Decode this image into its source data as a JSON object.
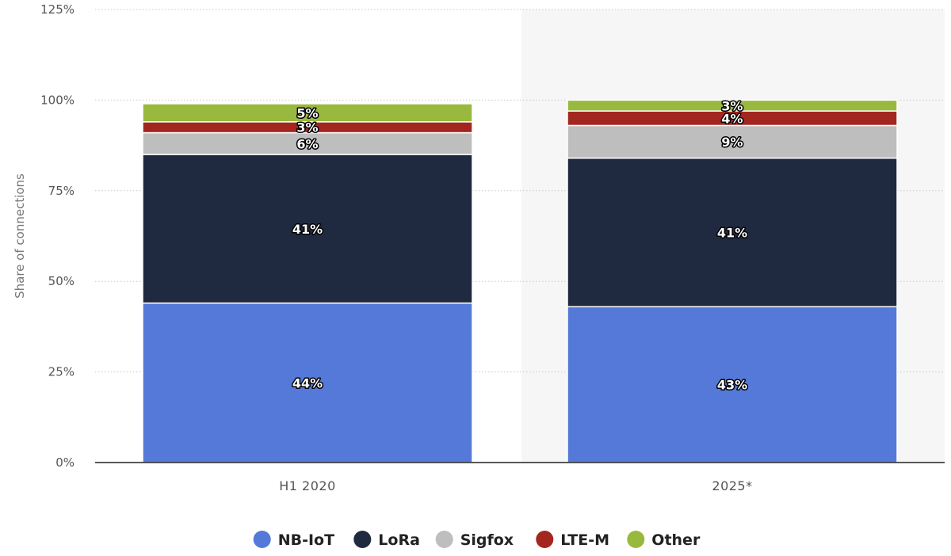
{
  "chart_data": {
    "type": "bar",
    "stacked": true,
    "categories": [
      "H1 2020",
      "2025*"
    ],
    "series": [
      {
        "name": "NB-IoT",
        "values": [
          44,
          43
        ],
        "labels": [
          "44%",
          "43%"
        ],
        "color": "#5479D8"
      },
      {
        "name": "LoRa",
        "values": [
          41,
          41
        ],
        "labels": [
          "41%",
          "41%"
        ],
        "color": "#1F2A40"
      },
      {
        "name": "Sigfox",
        "values": [
          6,
          9
        ],
        "labels": [
          "6%",
          "9%"
        ],
        "color": "#BEBEBE"
      },
      {
        "name": "LTE-M",
        "values": [
          3,
          4
        ],
        "labels": [
          "3%",
          "4%"
        ],
        "color": "#A3261F"
      },
      {
        "name": "Other",
        "values": [
          5,
          3
        ],
        "labels": [
          "5%",
          "3%"
        ],
        "color": "#99B93E"
      }
    ],
    "ylabel": "Share of connections",
    "xlabel": "",
    "ylim": [
      0,
      125
    ],
    "yticks": [
      0,
      25,
      50,
      75,
      100,
      125
    ],
    "ytick_labels": [
      "0%",
      "25%",
      "50%",
      "75%",
      "100%",
      "125%"
    ],
    "grid": true,
    "highlighted_category": "2025*",
    "legend_position": "bottom-center"
  }
}
